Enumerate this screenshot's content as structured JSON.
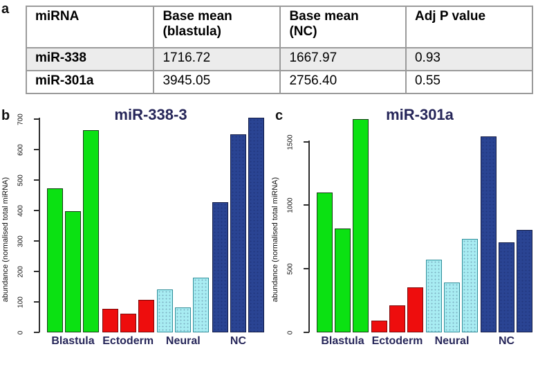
{
  "figure": {
    "panel_a_label": "a",
    "panel_b_label": "b",
    "panel_c_label": "c"
  },
  "table": {
    "headers": [
      {
        "line1": "miRNA",
        "line2": ""
      },
      {
        "line1": "Base mean",
        "line2": "(blastula)"
      },
      {
        "line1": "Base mean",
        "line2": "(NC)"
      },
      {
        "line1": "Adj P value",
        "line2": ""
      }
    ],
    "rows": [
      {
        "name": "miR-338",
        "base_mean_blastula": "1716.72",
        "base_mean_nc": "1667.97",
        "adj_p": "0.93",
        "shaded": true
      },
      {
        "name": "miR-301a",
        "base_mean_blastula": "3945.05",
        "base_mean_nc": "2756.40",
        "adj_p": "0.55",
        "shaded": false
      }
    ]
  },
  "chart_data": [
    {
      "type": "bar",
      "title": "miR-338-3",
      "xlabel": "",
      "ylabel": "abundance (normalised total miRNA)",
      "categories": [
        "Blastula",
        "Ectoderm",
        "Neural",
        "NC"
      ],
      "series": [
        {
          "name": "Blastula",
          "values": [
            473,
            398,
            665
          ]
        },
        {
          "name": "Ectoderm",
          "values": [
            78,
            62,
            106
          ]
        },
        {
          "name": "Neural",
          "values": [
            140,
            82,
            179
          ]
        },
        {
          "name": "NC",
          "values": [
            428,
            650,
            705
          ]
        }
      ],
      "yticks": [
        0,
        100,
        200,
        300,
        400,
        500,
        600,
        700
      ],
      "ylim": [
        0,
        710
      ],
      "grid": false,
      "legend": "none",
      "group_colors": {
        "Blastula": "#0be112",
        "Ectoderm": "#ee0d0d",
        "Neural": "#a8ecf2",
        "NC": "#2a4493"
      },
      "group_borders": {
        "Blastula": "#143c14",
        "Ectoderm": "#7a0a0a",
        "Neural": "#2e8d99",
        "NC": "#131c45"
      },
      "dotted": {
        "Blastula": false,
        "Ectoderm": false,
        "Neural": true,
        "NC": true
      }
    },
    {
      "type": "bar",
      "title": "miR-301a",
      "xlabel": "",
      "ylabel": "abundance (normalised total miRNA)",
      "categories": [
        "Blastula",
        "Ectoderm",
        "Neural",
        "NC"
      ],
      "series": [
        {
          "name": "Blastula",
          "values": [
            1100,
            820,
            1680
          ]
        },
        {
          "name": "Ectoderm",
          "values": [
            95,
            215,
            355
          ]
        },
        {
          "name": "Neural",
          "values": [
            570,
            395,
            735
          ]
        },
        {
          "name": "NC",
          "values": [
            1540,
            710,
            805
          ]
        }
      ],
      "yticks": [
        0,
        500,
        1000,
        1500
      ],
      "ylim": [
        0,
        1700
      ],
      "grid": false,
      "legend": "none",
      "group_colors": {
        "Blastula": "#0be112",
        "Ectoderm": "#ee0d0d",
        "Neural": "#a8ecf2",
        "NC": "#2a4493"
      },
      "group_borders": {
        "Blastula": "#143c14",
        "Ectoderm": "#7a0a0a",
        "Neural": "#2e8d99",
        "NC": "#131c45"
      },
      "dotted": {
        "Blastula": false,
        "Ectoderm": false,
        "Neural": true,
        "NC": true
      }
    }
  ],
  "colors": {
    "title_text": "#262659",
    "category_label_text": "#262659",
    "axis_text": "#111111",
    "table_border": "#9a9a9a",
    "table_row_shade": "#ececec",
    "bar_green": "#0be112",
    "bar_red": "#ee0d0d",
    "bar_cyan": "#a8ecf2",
    "bar_navy": "#2a4493"
  }
}
